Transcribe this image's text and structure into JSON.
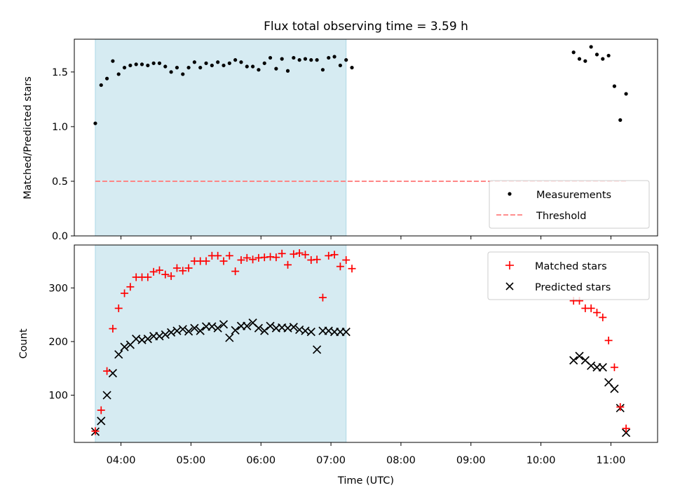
{
  "chart_data": [
    {
      "type": "scatter",
      "title": "Flux total observing time = 3.59 h",
      "ylabel": "Matched/Predicted stars",
      "xlabel": "",
      "xlim": [
        "03:20",
        "11:40"
      ],
      "ylim": [
        0,
        1.8
      ],
      "yticks": [
        0.0,
        0.5,
        1.0,
        1.5
      ],
      "ytick_labels": [
        "0.0",
        "0.5",
        "1.0",
        "1.5"
      ],
      "shaded_interval": [
        "03:38",
        "07:13"
      ],
      "shade_color": "#add8e6",
      "legend_position": "lower right",
      "series": [
        {
          "name": "Measurements",
          "marker": "dot",
          "color": "#000000",
          "points": [
            [
              "03:38",
              1.03
            ],
            [
              "03:43",
              1.38
            ],
            [
              "03:48",
              1.44
            ],
            [
              "03:53",
              1.6
            ],
            [
              "03:58",
              1.48
            ],
            [
              "04:03",
              1.54
            ],
            [
              "04:08",
              1.56
            ],
            [
              "04:13",
              1.57
            ],
            [
              "04:18",
              1.57
            ],
            [
              "04:23",
              1.56
            ],
            [
              "04:28",
              1.58
            ],
            [
              "04:33",
              1.58
            ],
            [
              "04:38",
              1.55
            ],
            [
              "04:43",
              1.5
            ],
            [
              "04:48",
              1.54
            ],
            [
              "04:53",
              1.48
            ],
            [
              "04:58",
              1.54
            ],
            [
              "05:03",
              1.59
            ],
            [
              "05:08",
              1.54
            ],
            [
              "05:13",
              1.58
            ],
            [
              "05:18",
              1.56
            ],
            [
              "05:23",
              1.59
            ],
            [
              "05:28",
              1.56
            ],
            [
              "05:33",
              1.58
            ],
            [
              "05:38",
              1.61
            ],
            [
              "05:43",
              1.59
            ],
            [
              "05:48",
              1.55
            ],
            [
              "05:53",
              1.55
            ],
            [
              "05:58",
              1.52
            ],
            [
              "06:03",
              1.58
            ],
            [
              "06:08",
              1.63
            ],
            [
              "06:13",
              1.53
            ],
            [
              "06:18",
              1.62
            ],
            [
              "06:23",
              1.51
            ],
            [
              "06:28",
              1.63
            ],
            [
              "06:33",
              1.61
            ],
            [
              "06:38",
              1.62
            ],
            [
              "06:43",
              1.61
            ],
            [
              "06:48",
              1.61
            ],
            [
              "06:53",
              1.52
            ],
            [
              "06:58",
              1.63
            ],
            [
              "07:03",
              1.64
            ],
            [
              "07:08",
              1.56
            ],
            [
              "07:13",
              1.61
            ],
            [
              "07:18",
              1.54
            ],
            [
              "10:28",
              1.68
            ],
            [
              "10:33",
              1.62
            ],
            [
              "10:38",
              1.6
            ],
            [
              "10:43",
              1.73
            ],
            [
              "10:48",
              1.66
            ],
            [
              "10:53",
              1.62
            ],
            [
              "10:58",
              1.65
            ],
            [
              "11:03",
              1.37
            ],
            [
              "11:08",
              1.06
            ],
            [
              "11:13",
              1.3
            ]
          ]
        },
        {
          "name": "Threshold",
          "style": "dashed",
          "color": "#ff7f7f",
          "points": [
            [
              "03:38",
              0.5
            ],
            [
              "11:13",
              0.5
            ]
          ]
        }
      ]
    },
    {
      "type": "scatter",
      "title": "",
      "ylabel": "Count",
      "xlabel": "Time (UTC)",
      "xlim": [
        "03:20",
        "11:40"
      ],
      "ylim": [
        12,
        380
      ],
      "yticks": [
        100,
        200,
        300
      ],
      "xticks": [
        "04:00",
        "05:00",
        "06:00",
        "07:00",
        "08:00",
        "09:00",
        "10:00",
        "11:00"
      ],
      "shaded_interval": [
        "03:38",
        "07:13"
      ],
      "shade_color": "#add8e6",
      "legend_position": "upper right",
      "series": [
        {
          "name": "Matched stars",
          "marker": "+",
          "color": "#ff0000",
          "points": [
            [
              "03:38",
              33
            ],
            [
              "03:43",
              72
            ],
            [
              "03:48",
              145
            ],
            [
              "03:53",
              224
            ],
            [
              "03:58",
              262
            ],
            [
              "04:03",
              290
            ],
            [
              "04:08",
              302
            ],
            [
              "04:13",
              320
            ],
            [
              "04:18",
              320
            ],
            [
              "04:23",
              320
            ],
            [
              "04:28",
              330
            ],
            [
              "04:33",
              333
            ],
            [
              "04:38",
              325
            ],
            [
              "04:43",
              322
            ],
            [
              "04:48",
              337
            ],
            [
              "04:53",
              332
            ],
            [
              "04:58",
              337
            ],
            [
              "05:03",
              350
            ],
            [
              "05:08",
              350
            ],
            [
              "05:13",
              350
            ],
            [
              "05:18",
              360
            ],
            [
              "05:23",
              360
            ],
            [
              "05:28",
              350
            ],
            [
              "05:33",
              360
            ],
            [
              "05:38",
              331
            ],
            [
              "05:43",
              352
            ],
            [
              "05:48",
              356
            ],
            [
              "05:53",
              353
            ],
            [
              "05:58",
              356
            ],
            [
              "06:03",
              357
            ],
            [
              "06:08",
              358
            ],
            [
              "06:13",
              357
            ],
            [
              "06:18",
              364
            ],
            [
              "06:23",
              343
            ],
            [
              "06:28",
              363
            ],
            [
              "06:33",
              365
            ],
            [
              "06:38",
              362
            ],
            [
              "06:43",
              352
            ],
            [
              "06:48",
              353
            ],
            [
              "06:53",
              282
            ],
            [
              "06:58",
              360
            ],
            [
              "07:03",
              362
            ],
            [
              "07:08",
              340
            ],
            [
              "07:13",
              352
            ],
            [
              "07:18",
              336
            ],
            [
              "10:28",
              276
            ],
            [
              "10:33",
              276
            ],
            [
              "10:38",
              262
            ],
            [
              "10:43",
              262
            ],
            [
              "10:48",
              254
            ],
            [
              "10:53",
              245
            ],
            [
              "10:58",
              202
            ],
            [
              "11:03",
              152
            ],
            [
              "11:08",
              78
            ],
            [
              "11:13",
              38
            ]
          ]
        },
        {
          "name": "Predicted stars",
          "marker": "x",
          "color": "#000000",
          "points": [
            [
              "03:38",
              32
            ],
            [
              "03:43",
              52
            ],
            [
              "03:48",
              100
            ],
            [
              "03:53",
              141
            ],
            [
              "03:58",
              176
            ],
            [
              "04:03",
              190
            ],
            [
              "04:08",
              194
            ],
            [
              "04:13",
              205
            ],
            [
              "04:18",
              203
            ],
            [
              "04:23",
              205
            ],
            [
              "04:28",
              210
            ],
            [
              "04:33",
              210
            ],
            [
              "04:38",
              213
            ],
            [
              "04:43",
              217
            ],
            [
              "04:48",
              220
            ],
            [
              "04:53",
              223
            ],
            [
              "04:58",
              219
            ],
            [
              "05:03",
              225
            ],
            [
              "05:08",
              220
            ],
            [
              "05:13",
              228
            ],
            [
              "05:18",
              228
            ],
            [
              "05:23",
              225
            ],
            [
              "05:28",
              232
            ],
            [
              "05:33",
              207
            ],
            [
              "05:38",
              221
            ],
            [
              "05:43",
              229
            ],
            [
              "05:48",
              229
            ],
            [
              "05:53",
              235
            ],
            [
              "05:58",
              225
            ],
            [
              "06:03",
              220
            ],
            [
              "06:08",
              229
            ],
            [
              "06:13",
              225
            ],
            [
              "06:18",
              226
            ],
            [
              "06:23",
              225
            ],
            [
              "06:28",
              227
            ],
            [
              "06:33",
              222
            ],
            [
              "06:38",
              220
            ],
            [
              "06:43",
              218
            ],
            [
              "06:48",
              185
            ],
            [
              "06:53",
              220
            ],
            [
              "06:58",
              220
            ],
            [
              "07:03",
              218
            ],
            [
              "07:08",
              218
            ],
            [
              "07:13",
              218
            ],
            [
              "10:28",
              165
            ],
            [
              "10:33",
              173
            ],
            [
              "10:38",
              165
            ],
            [
              "10:43",
              155
            ],
            [
              "10:48",
              152
            ],
            [
              "10:53",
              152
            ],
            [
              "10:58",
              124
            ],
            [
              "11:03",
              112
            ],
            [
              "11:08",
              76
            ],
            [
              "11:13",
              30
            ]
          ]
        }
      ]
    }
  ]
}
